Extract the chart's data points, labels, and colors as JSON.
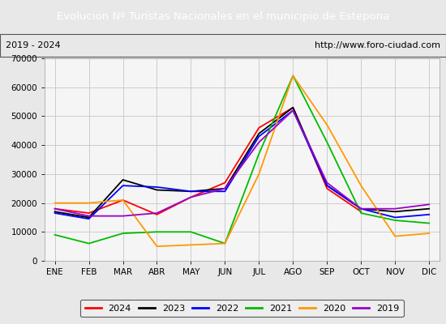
{
  "title": "Evolucion Nº Turistas Nacionales en el municipio de Estepona",
  "subtitle_left": "2019 - 2024",
  "subtitle_right": "http://www.foro-ciudad.com",
  "title_bg_color": "#4472c4",
  "title_fg_color": "#ffffff",
  "months": [
    "ENE",
    "FEB",
    "MAR",
    "ABR",
    "MAY",
    "JUN",
    "JUL",
    "AGO",
    "SEP",
    "OCT",
    "NOV",
    "DIC"
  ],
  "ylim": [
    0,
    70000
  ],
  "yticks": [
    0,
    10000,
    20000,
    30000,
    40000,
    50000,
    60000,
    70000
  ],
  "series": {
    "2024": {
      "color": "#ff0000",
      "data": [
        18000,
        16500,
        21000,
        16000,
        22000,
        27000,
        46000,
        53000,
        25000,
        17000,
        null,
        null
      ]
    },
    "2023": {
      "color": "#000000",
      "data": [
        17000,
        15000,
        28000,
        24500,
        24000,
        25000,
        44000,
        53000,
        26000,
        18000,
        17000,
        18000
      ]
    },
    "2022": {
      "color": "#0000ff",
      "data": [
        16500,
        14500,
        26000,
        25500,
        24000,
        24000,
        43000,
        52000,
        26000,
        18000,
        15000,
        16000
      ]
    },
    "2021": {
      "color": "#00bb00",
      "data": [
        9000,
        6000,
        9500,
        10000,
        10000,
        6000,
        37000,
        64000,
        41000,
        16500,
        14000,
        13000
      ]
    },
    "2020": {
      "color": "#ff9900",
      "data": [
        20000,
        20000,
        21000,
        5000,
        5500,
        6000,
        30000,
        64000,
        47000,
        26000,
        8500,
        9500
      ]
    },
    "2019": {
      "color": "#9900cc",
      "data": [
        18000,
        15500,
        15500,
        16500,
        22000,
        25000,
        41000,
        52000,
        27000,
        18000,
        18000,
        19500
      ]
    }
  },
  "legend_order": [
    "2024",
    "2023",
    "2022",
    "2021",
    "2020",
    "2019"
  ],
  "bg_color": "#e8e8e8",
  "plot_bg_color": "#f5f5f5",
  "grid_color": "#cccccc",
  "border_color": "#555555"
}
